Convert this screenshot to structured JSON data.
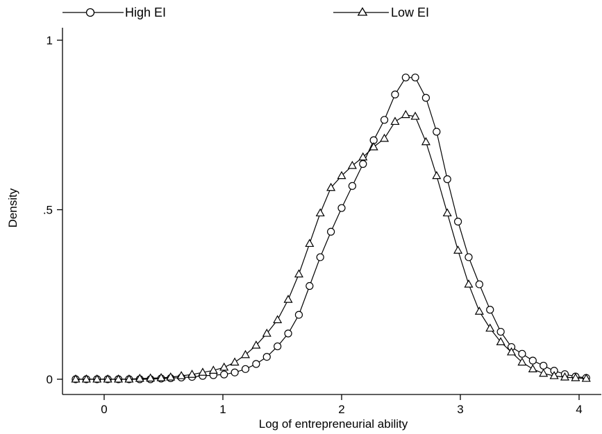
{
  "chart_data": {
    "type": "line",
    "title": "",
    "xlabel": "Log of entrepreneurial ability",
    "ylabel": "Density",
    "xlim": [
      -0.25,
      4.08
    ],
    "ylim": [
      0,
      1
    ],
    "xticks": [
      {
        "value": 0,
        "label": "0"
      },
      {
        "value": 1,
        "label": "1"
      },
      {
        "value": 2,
        "label": "2"
      },
      {
        "value": 3,
        "label": "3"
      },
      {
        "value": 4,
        "label": "4"
      }
    ],
    "yticks": [
      {
        "value": 0,
        "label": "0"
      },
      {
        "value": 0.5,
        "label": ".5"
      },
      {
        "value": 1,
        "label": "1"
      }
    ],
    "grid": false,
    "legend_position": "top",
    "series": [
      {
        "name": "High EI",
        "marker": "circle",
        "color": "#000000",
        "x": [
          -0.24,
          -0.15,
          -0.06,
          0.03,
          0.12,
          0.21,
          0.3,
          0.39,
          0.48,
          0.56,
          0.65,
          0.74,
          0.83,
          0.92,
          1.01,
          1.1,
          1.19,
          1.28,
          1.37,
          1.46,
          1.55,
          1.64,
          1.73,
          1.82,
          1.91,
          2.0,
          2.09,
          2.18,
          2.27,
          2.36,
          2.45,
          2.54,
          2.62,
          2.71,
          2.8,
          2.89,
          2.98,
          3.07,
          3.16,
          3.25,
          3.34,
          3.43,
          3.52,
          3.61,
          3.7,
          3.79,
          3.88,
          3.97,
          4.06
        ],
        "y": [
          0,
          0,
          0,
          0,
          0,
          0,
          0,
          0,
          0.002,
          0.003,
          0.005,
          0.007,
          0.01,
          0.012,
          0.014,
          0.02,
          0.03,
          0.045,
          0.066,
          0.097,
          0.135,
          0.19,
          0.275,
          0.36,
          0.435,
          0.505,
          0.57,
          0.635,
          0.705,
          0.765,
          0.84,
          0.89,
          0.89,
          0.83,
          0.73,
          0.59,
          0.465,
          0.36,
          0.28,
          0.205,
          0.14,
          0.095,
          0.075,
          0.055,
          0.04,
          0.025,
          0.015,
          0.008,
          0.004
        ]
      },
      {
        "name": "Low EI",
        "marker": "triangle",
        "color": "#000000",
        "x": [
          -0.24,
          -0.15,
          -0.06,
          0.03,
          0.12,
          0.21,
          0.3,
          0.39,
          0.48,
          0.56,
          0.65,
          0.74,
          0.83,
          0.92,
          1.01,
          1.1,
          1.19,
          1.28,
          1.37,
          1.46,
          1.55,
          1.64,
          1.73,
          1.82,
          1.91,
          2.0,
          2.09,
          2.18,
          2.27,
          2.36,
          2.45,
          2.54,
          2.62,
          2.71,
          2.8,
          2.89,
          2.98,
          3.07,
          3.16,
          3.25,
          3.34,
          3.43,
          3.52,
          3.61,
          3.7,
          3.79,
          3.88,
          3.97,
          4.06
        ],
        "y": [
          0,
          0,
          0,
          0,
          0,
          0,
          0.002,
          0.003,
          0.004,
          0.006,
          0.01,
          0.014,
          0.02,
          0.026,
          0.035,
          0.05,
          0.072,
          0.1,
          0.135,
          0.175,
          0.235,
          0.31,
          0.4,
          0.49,
          0.565,
          0.6,
          0.63,
          0.655,
          0.685,
          0.71,
          0.76,
          0.78,
          0.775,
          0.7,
          0.6,
          0.49,
          0.38,
          0.28,
          0.2,
          0.15,
          0.11,
          0.08,
          0.05,
          0.03,
          0.017,
          0.01,
          0.006,
          0.004,
          0.002
        ]
      }
    ]
  }
}
